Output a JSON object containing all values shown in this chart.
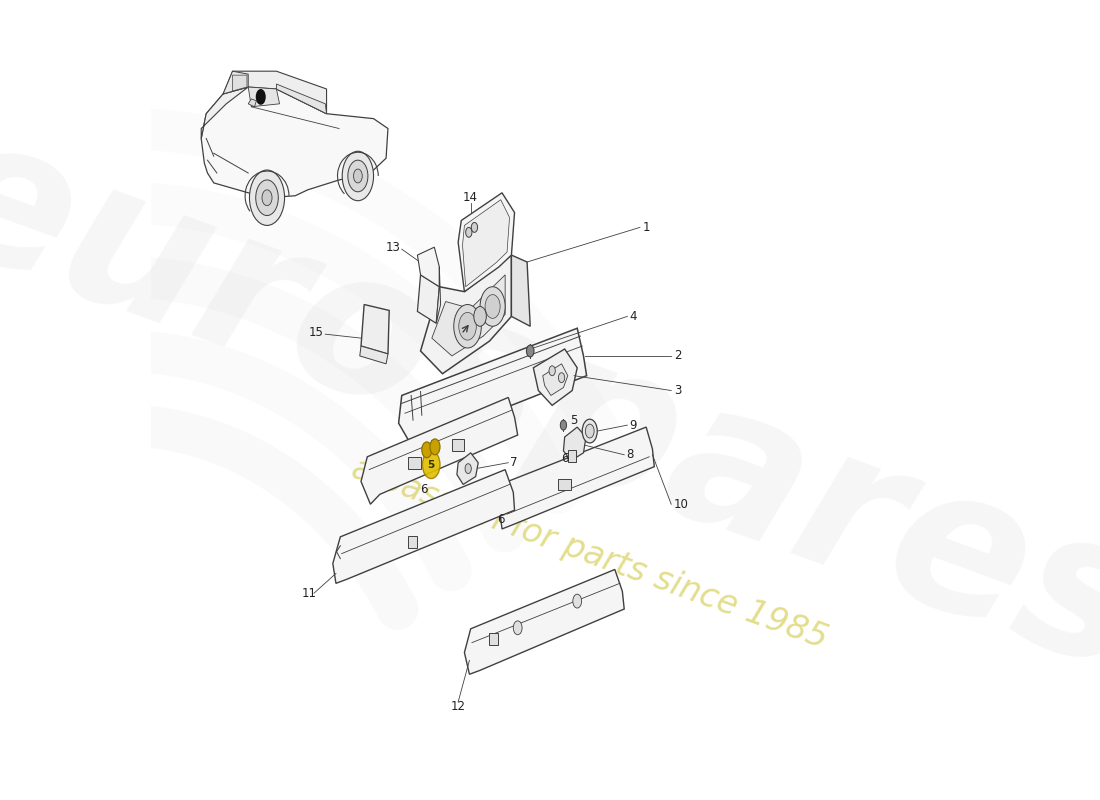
{
  "bg": "#ffffff",
  "lc": "#404040",
  "ac": "#222222",
  "wm1": "eurospares",
  "wm2": "a passion for parts since 1985",
  "wm1_color": "#d0d0d0",
  "wm2_color": "#d4cc50",
  "part_numbers": [
    "1",
    "2",
    "3",
    "4",
    "5",
    "6",
    "7",
    "8",
    "9",
    "10",
    "11",
    "12",
    "13",
    "14",
    "15"
  ]
}
